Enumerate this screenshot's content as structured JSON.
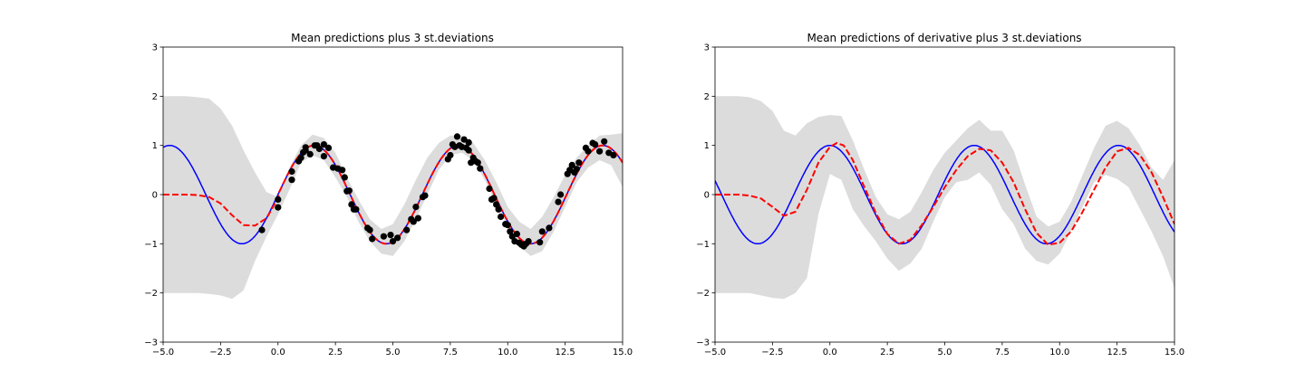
{
  "chart_data": [
    {
      "type": "line",
      "title": "Mean predictions plus 3 st.deviations",
      "xlabel": "",
      "ylabel": "",
      "xlim": [
        -5.0,
        15.0
      ],
      "ylim": [
        -3,
        3
      ],
      "x_ticks": [
        -5.0,
        -2.5,
        0.0,
        2.5,
        5.0,
        7.5,
        10.0,
        12.5,
        15.0
      ],
      "x_tick_labels": [
        "−5.0",
        "−2.5",
        "0.0",
        "2.5",
        "5.0",
        "7.5",
        "10.0",
        "12.5",
        "15.0"
      ],
      "y_ticks": [
        -3,
        -2,
        -1,
        0,
        1,
        2,
        3
      ],
      "y_tick_labels": [
        "−3",
        "−2",
        "−1",
        "0",
        "1",
        "2",
        "3"
      ],
      "grid": false,
      "band": {
        "color": "#dcdcdc",
        "x": [
          -5,
          -4,
          -3.5,
          -3,
          -2.5,
          -2,
          -1.5,
          -1,
          -0.5,
          0,
          0.5,
          1,
          1.5,
          2,
          2.5,
          3,
          3.5,
          4,
          4.5,
          5,
          5.5,
          6,
          6.5,
          7,
          7.5,
          8,
          8.5,
          9,
          9.5,
          10,
          10.5,
          11,
          11.5,
          12,
          12.5,
          13,
          13.5,
          14,
          14.5,
          15
        ],
        "upper": [
          2.0,
          2.0,
          1.98,
          1.95,
          1.75,
          1.4,
          0.9,
          0.45,
          0.05,
          -0.05,
          0.55,
          1.0,
          1.22,
          1.15,
          0.85,
          0.35,
          -0.1,
          -0.5,
          -0.7,
          -0.6,
          -0.2,
          0.3,
          0.75,
          1.05,
          1.2,
          1.2,
          1.05,
          0.7,
          0.25,
          -0.25,
          -0.55,
          -0.7,
          -0.45,
          -0.05,
          0.4,
          0.75,
          1.0,
          1.2,
          1.22,
          1.25
        ],
        "lower": [
          -2.0,
          -2.0,
          -2.0,
          -2.02,
          -2.05,
          -2.12,
          -1.95,
          -1.35,
          -0.85,
          -0.4,
          0.1,
          0.65,
          0.8,
          0.7,
          0.35,
          -0.05,
          -0.55,
          -0.95,
          -1.2,
          -1.25,
          -0.95,
          -0.5,
          0.0,
          0.5,
          0.8,
          0.85,
          0.7,
          0.3,
          -0.2,
          -0.65,
          -1.05,
          -1.25,
          -1.15,
          -0.75,
          -0.25,
          0.25,
          0.55,
          0.7,
          0.6,
          0.15
        ]
      },
      "series": [
        {
          "color": "#0000ff",
          "dash": "solid",
          "function": "sin",
          "x_range": [
            -5,
            15
          ]
        },
        {
          "color": "#ff0000",
          "dash": "dashed",
          "x": [
            -5,
            -4,
            -3.5,
            -3,
            -2.5,
            -2,
            -1.5,
            -1,
            -0.5,
            0
          ],
          "y": [
            0.0,
            0.0,
            -0.01,
            -0.05,
            -0.18,
            -0.42,
            -0.62,
            -0.63,
            -0.48,
            -0.07
          ],
          "then_function": "sin",
          "then_x_range": [
            0,
            15
          ]
        }
      ],
      "points": {
        "color": "#000000",
        "x": [
          -0.7,
          0.0,
          0.0,
          0.6,
          0.6,
          0.9,
          1.0,
          1.1,
          1.2,
          1.2,
          1.4,
          1.6,
          1.7,
          1.8,
          2.0,
          2.0,
          2.2,
          2.4,
          2.6,
          2.8,
          2.9,
          3.0,
          3.1,
          3.2,
          3.3,
          3.4,
          3.9,
          4.0,
          4.1,
          4.6,
          4.9,
          5.0,
          5.2,
          5.6,
          5.8,
          5.9,
          6.0,
          6.1,
          6.3,
          6.4,
          7.4,
          7.5,
          7.6,
          7.7,
          7.8,
          7.9,
          8.0,
          8.1,
          8.2,
          8.3,
          8.3,
          8.4,
          8.5,
          8.6,
          8.7,
          8.8,
          9.2,
          9.3,
          9.4,
          9.5,
          9.6,
          9.7,
          9.9,
          10.0,
          10.1,
          10.2,
          10.3,
          10.4,
          10.5,
          10.6,
          10.7,
          10.8,
          10.9,
          11.4,
          11.5,
          11.8,
          12.2,
          12.3,
          12.6,
          12.7,
          12.8,
          12.9,
          13.0,
          13.1,
          13.4,
          13.5,
          13.7,
          13.8,
          14.0,
          14.2,
          14.4,
          14.6
        ],
        "y": [
          -0.72,
          -0.26,
          -0.1,
          0.3,
          0.47,
          0.68,
          0.75,
          0.86,
          0.9,
          0.96,
          0.82,
          1.0,
          1.0,
          0.93,
          0.78,
          1.02,
          0.95,
          0.55,
          0.53,
          0.5,
          0.35,
          0.07,
          0.08,
          -0.2,
          -0.3,
          -0.3,
          -0.68,
          -0.72,
          -0.9,
          -0.85,
          -0.82,
          -0.95,
          -0.88,
          -0.72,
          -0.5,
          -0.55,
          -0.25,
          -0.48,
          -0.05,
          -0.02,
          0.72,
          0.8,
          1.02,
          0.97,
          1.18,
          1.0,
          0.97,
          1.12,
          0.95,
          1.06,
          0.9,
          0.65,
          0.75,
          0.68,
          0.65,
          0.53,
          0.12,
          -0.1,
          -0.07,
          -0.2,
          -0.3,
          -0.45,
          -0.6,
          -0.62,
          -0.75,
          -0.85,
          -0.95,
          -0.8,
          -0.98,
          -1.02,
          -1.05,
          -1.0,
          -0.95,
          -0.97,
          -0.75,
          -0.68,
          -0.15,
          0.0,
          0.42,
          0.5,
          0.6,
          0.45,
          0.52,
          0.65,
          0.95,
          0.88,
          1.05,
          1.02,
          0.88,
          1.08,
          0.85,
          0.8
        ]
      }
    },
    {
      "type": "line",
      "title": "Mean predictions of derivative plus 3 st.deviations",
      "xlabel": "",
      "ylabel": "",
      "xlim": [
        -5.0,
        15.0
      ],
      "ylim": [
        -3,
        3
      ],
      "x_ticks": [
        -5.0,
        -2.5,
        0.0,
        2.5,
        5.0,
        7.5,
        10.0,
        12.5,
        15.0
      ],
      "x_tick_labels": [
        "−5.0",
        "−2.5",
        "0.0",
        "2.5",
        "5.0",
        "7.5",
        "10.0",
        "12.5",
        "15.0"
      ],
      "y_ticks": [
        -3,
        -2,
        -1,
        0,
        1,
        2,
        3
      ],
      "y_tick_labels": [
        "−3",
        "−2",
        "−1",
        "0",
        "1",
        "2",
        "3"
      ],
      "grid": false,
      "band": {
        "color": "#dcdcdc",
        "x": [
          -5,
          -4,
          -3.5,
          -3,
          -2.5,
          -2,
          -1.5,
          -1,
          -0.5,
          0,
          0.5,
          1,
          1.5,
          2,
          2.5,
          3,
          3.5,
          4,
          4.5,
          5,
          5.5,
          6,
          6.5,
          7,
          7.5,
          8,
          8.5,
          9,
          9.5,
          10,
          10.5,
          11,
          11.5,
          12,
          12.5,
          13,
          13.5,
          14,
          14.5,
          15
        ],
        "upper": [
          2.0,
          2.0,
          1.98,
          1.9,
          1.7,
          1.3,
          1.2,
          1.45,
          1.58,
          1.62,
          1.6,
          1.1,
          0.5,
          -0.05,
          -0.4,
          -0.5,
          -0.35,
          0.05,
          0.5,
          0.85,
          1.1,
          1.35,
          1.52,
          1.3,
          1.3,
          0.9,
          0.2,
          -0.45,
          -0.65,
          -0.55,
          -0.15,
          0.4,
          0.95,
          1.4,
          1.5,
          1.35,
          1.0,
          0.55,
          0.3,
          0.7
        ],
        "lower": [
          -2.0,
          -2.0,
          -2.0,
          -2.05,
          -2.1,
          -2.12,
          -2.0,
          -1.7,
          -0.4,
          0.42,
          0.3,
          -0.3,
          -0.65,
          -0.95,
          -1.3,
          -1.55,
          -1.4,
          -1.1,
          -0.55,
          -0.05,
          0.25,
          0.3,
          0.45,
          0.2,
          -0.3,
          -0.6,
          -1.1,
          -1.35,
          -1.42,
          -1.2,
          -0.75,
          -0.25,
          0.25,
          0.4,
          0.32,
          0.15,
          -0.3,
          -0.75,
          -1.25,
          -1.9
        ]
      },
      "series": [
        {
          "color": "#0000ff",
          "dash": "solid",
          "function": "cos",
          "x_range": [
            -5,
            15
          ]
        },
        {
          "color": "#ff0000",
          "dash": "dashed",
          "x": [
            -5,
            -4,
            -3.5,
            -3,
            -2.5,
            -2,
            -1.5,
            -1,
            -0.5,
            0,
            0.3,
            0.6,
            1.0,
            1.5,
            2.0,
            2.5,
            3.0,
            3.5,
            4.0,
            4.5,
            5.0,
            5.5,
            6.0,
            6.5,
            7.0,
            7.5,
            8.0,
            8.5,
            9.0,
            9.5,
            10.0,
            10.5,
            11.0,
            11.5,
            12.0,
            12.5,
            13.0,
            13.5,
            14.0,
            14.5,
            15.0
          ],
          "y": [
            0.0,
            0.0,
            -0.02,
            -0.08,
            -0.25,
            -0.43,
            -0.35,
            0.1,
            0.65,
            0.97,
            1.05,
            1.0,
            0.7,
            0.15,
            -0.38,
            -0.8,
            -1.0,
            -0.92,
            -0.62,
            -0.25,
            0.15,
            0.5,
            0.78,
            0.93,
            0.9,
            0.65,
            0.25,
            -0.3,
            -0.78,
            -1.02,
            -0.98,
            -0.75,
            -0.35,
            0.1,
            0.55,
            0.88,
            0.95,
            0.8,
            0.45,
            -0.05,
            -0.6
          ]
        }
      ]
    }
  ]
}
